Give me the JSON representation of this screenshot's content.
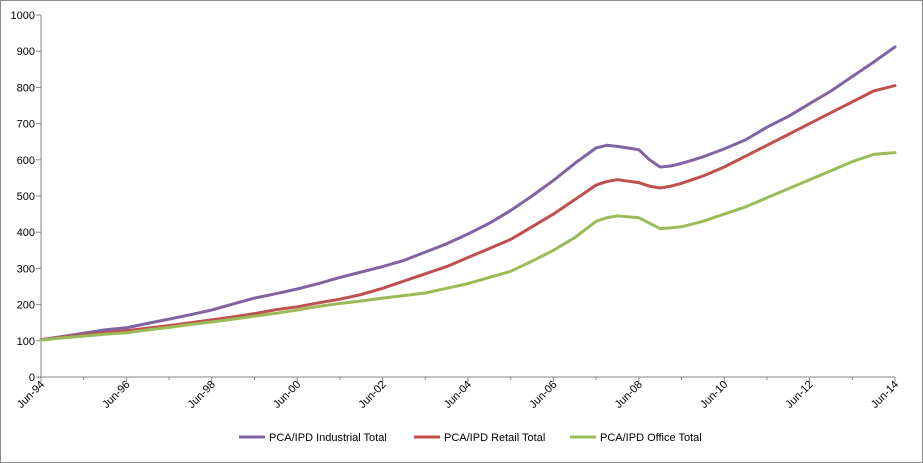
{
  "chart_data": {
    "type": "line",
    "title": "",
    "xlabel": "",
    "ylabel": "",
    "ylim": [
      0,
      1000
    ],
    "yticks": [
      0,
      100,
      200,
      300,
      400,
      500,
      600,
      700,
      800,
      900,
      1000
    ],
    "xtick_labels": [
      "Jun-94",
      "Jun-96",
      "Jun-98",
      "Jun-00",
      "Jun-02",
      "Jun-04",
      "Jun-06",
      "Jun-08",
      "Jun-10",
      "Jun-12",
      "Jun-14"
    ],
    "xtick_years": [
      1994.5,
      1996.5,
      1998.5,
      2000.5,
      2002.5,
      2004.5,
      2006.5,
      2008.5,
      2010.5,
      2012.5,
      2014.5
    ],
    "xlim": [
      1994.5,
      2014.5
    ],
    "grid": false,
    "legend": "bottom",
    "series": [
      {
        "name": "PCA/IPD Industrial Total",
        "color": "#8064a2",
        "x": [
          1994.5,
          1995.0,
          1995.5,
          1996.0,
          1996.5,
          1997.0,
          1997.5,
          1998.0,
          1998.5,
          1999.0,
          1999.5,
          2000.0,
          2000.5,
          2001.0,
          2001.5,
          2002.0,
          2002.5,
          2003.0,
          2003.5,
          2004.0,
          2004.5,
          2005.0,
          2005.5,
          2006.0,
          2006.5,
          2007.0,
          2007.5,
          2007.75,
          2008.0,
          2008.5,
          2008.75,
          2009.0,
          2009.25,
          2009.5,
          2010.0,
          2010.5,
          2011.0,
          2011.5,
          2012.0,
          2012.5,
          2013.0,
          2013.5,
          2014.0,
          2014.5
        ],
        "y": [
          103,
          112,
          121,
          130,
          136,
          148,
          160,
          172,
          185,
          202,
          218,
          230,
          243,
          258,
          275,
          290,
          305,
          322,
          345,
          368,
          395,
          425,
          460,
          500,
          543,
          590,
          633,
          640,
          637,
          628,
          600,
          580,
          583,
          590,
          608,
          630,
          655,
          690,
          720,
          755,
          790,
          830,
          870,
          912
        ]
      },
      {
        "name": "PCA/IPD Retail Total",
        "color": "#c0504d",
        "x": [
          1994.5,
          1995.0,
          1995.5,
          1996.0,
          1996.5,
          1997.0,
          1997.5,
          1998.0,
          1998.5,
          1999.0,
          1999.5,
          2000.0,
          2000.5,
          2001.0,
          2001.5,
          2002.0,
          2002.5,
          2003.0,
          2003.5,
          2004.0,
          2004.5,
          2005.0,
          2005.5,
          2006.0,
          2006.5,
          2007.0,
          2007.5,
          2007.75,
          2008.0,
          2008.5,
          2008.75,
          2009.0,
          2009.25,
          2009.5,
          2010.0,
          2010.5,
          2011.0,
          2011.5,
          2012.0,
          2012.5,
          2013.0,
          2013.5,
          2014.0,
          2014.5
        ],
        "y": [
          103,
          110,
          116,
          122,
          128,
          135,
          142,
          150,
          158,
          166,
          175,
          186,
          194,
          205,
          215,
          228,
          245,
          265,
          285,
          305,
          330,
          355,
          380,
          415,
          450,
          490,
          530,
          540,
          545,
          537,
          527,
          522,
          527,
          535,
          555,
          580,
          610,
          640,
          670,
          700,
          730,
          760,
          790,
          805
        ]
      },
      {
        "name": "PCA/IPD Office Total",
        "color": "#9bbb59",
        "x": [
          1994.5,
          1995.0,
          1995.5,
          1996.0,
          1996.5,
          1997.0,
          1997.5,
          1998.0,
          1998.5,
          1999.0,
          1999.5,
          2000.0,
          2000.5,
          2001.0,
          2001.5,
          2002.0,
          2002.5,
          2003.0,
          2003.5,
          2004.0,
          2004.5,
          2005.0,
          2005.5,
          2006.0,
          2006.5,
          2007.0,
          2007.5,
          2007.75,
          2008.0,
          2008.5,
          2008.75,
          2009.0,
          2009.25,
          2009.5,
          2010.0,
          2010.5,
          2011.0,
          2011.5,
          2012.0,
          2012.5,
          2013.0,
          2013.5,
          2014.0,
          2014.5
        ],
        "y": [
          102,
          108,
          113,
          118,
          122,
          130,
          137,
          145,
          152,
          160,
          168,
          176,
          185,
          195,
          203,
          210,
          218,
          225,
          232,
          245,
          258,
          275,
          292,
          320,
          350,
          385,
          430,
          440,
          445,
          440,
          425,
          410,
          412,
          415,
          430,
          450,
          470,
          495,
          520,
          545,
          570,
          595,
          615,
          620
        ]
      }
    ]
  }
}
